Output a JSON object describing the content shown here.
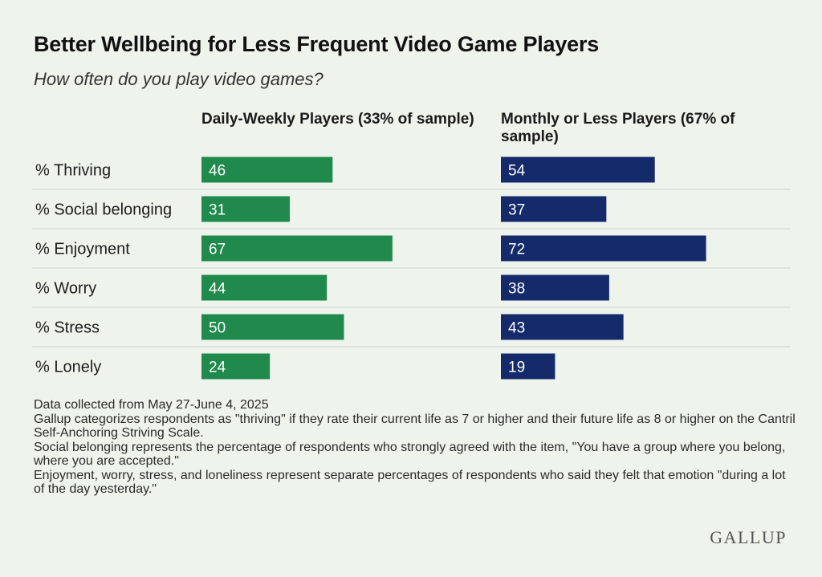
{
  "title": "Better Wellbeing for Less Frequent Video Game Players",
  "subtitle": "How often do you play video games?",
  "colors": {
    "daily_weekly": "#1f8a4c",
    "monthly_or_less": "#142a6b",
    "background": "#eef4ec"
  },
  "chart_data": {
    "type": "bar",
    "orientation": "horizontal",
    "categories": [
      "% Thriving",
      "% Social belonging",
      "% Enjoyment",
      "% Worry",
      "% Stress",
      "% Lonely"
    ],
    "series": [
      {
        "name": "Daily-Weekly Players (33% of sample)",
        "values": [
          46,
          31,
          67,
          44,
          50,
          24
        ]
      },
      {
        "name": "Monthly or Less Players (67% of sample)",
        "values": [
          54,
          37,
          72,
          38,
          43,
          19
        ]
      }
    ],
    "xlim": [
      0,
      100
    ],
    "grid": false,
    "data_labels": true
  },
  "notes": [
    "Data collected from May 27-June 4, 2025",
    "Gallup categorizes respondents as \"thriving\" if they rate their current life as 7 or higher and their future life as 8 or higher on the Cantril Self-Anchoring Striving Scale.",
    "Social belonging represents the percentage of respondents who strongly agreed with the item, \"You have a group where you belong, where you are accepted.\"",
    "Enjoyment, worry, stress, and loneliness represent separate percentages of respondents who said they felt that emotion \"during a lot of the day yesterday.\""
  ],
  "logo_text": "GALLUP"
}
